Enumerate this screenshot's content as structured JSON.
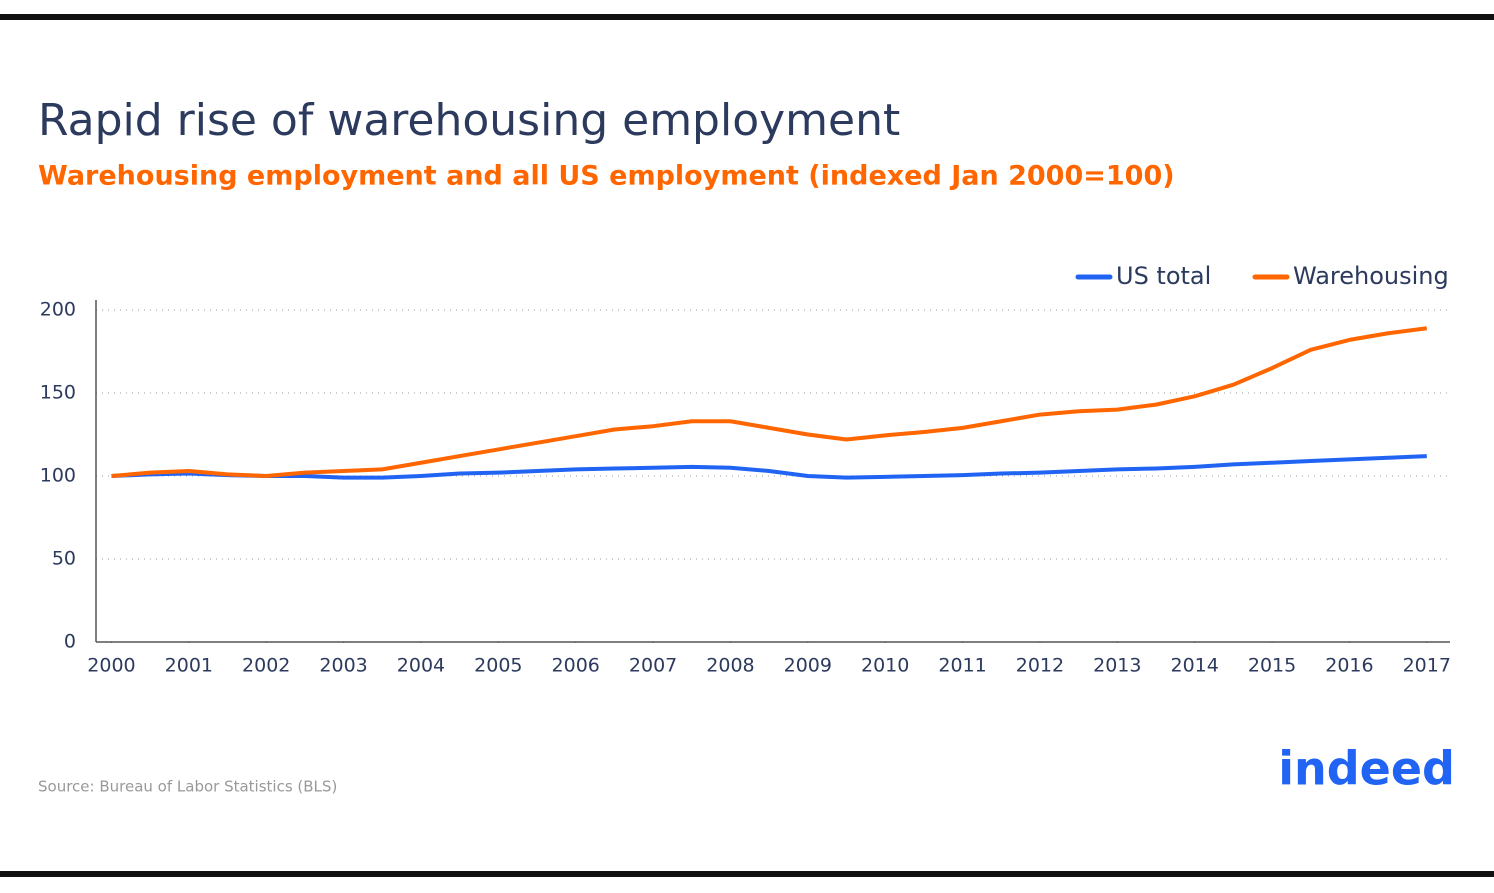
{
  "chart_data": {
    "type": "line",
    "title": "Rapid rise of warehousing employment",
    "subtitle": "Warehousing employment and all US employment (indexed Jan 2000=100)",
    "source": "Source: Bureau of Labor Statistics (BLS)",
    "logo": "indeed",
    "x": [
      2000,
      2000.5,
      2001,
      2001.5,
      2002,
      2002.5,
      2003,
      2003.5,
      2004,
      2004.5,
      2005,
      2005.5,
      2006,
      2006.5,
      2007,
      2007.5,
      2008,
      2008.5,
      2009,
      2009.5,
      2010,
      2010.5,
      2011,
      2011.5,
      2012,
      2012.5,
      2013,
      2013.5,
      2014,
      2014.5,
      2015,
      2015.5,
      2016,
      2016.5,
      2017
    ],
    "series": [
      {
        "name": "US total",
        "color": "#2164f3",
        "values": [
          100,
          101,
          101.5,
          100.5,
          100,
          100,
          99,
          99,
          100,
          101.5,
          102,
          103,
          104,
          104.5,
          105,
          105.5,
          105,
          103,
          100,
          99,
          99.5,
          100,
          100.5,
          101.5,
          102,
          103,
          104,
          104.5,
          105.5,
          107,
          108,
          109,
          110,
          111,
          112
        ]
      },
      {
        "name": "Warehousing",
        "color": "#ff6600",
        "values": [
          100,
          102,
          103,
          101,
          100,
          102,
          103,
          104,
          108,
          112,
          116,
          120,
          124,
          128,
          130,
          133,
          133,
          129,
          125,
          122,
          124.5,
          126.5,
          129,
          133,
          137,
          139,
          140,
          143,
          148,
          155,
          165,
          176,
          182,
          186,
          189
        ]
      }
    ],
    "xlim": [
      1999.8,
      2017.3
    ],
    "xticks": [
      2000,
      2001,
      2002,
      2003,
      2004,
      2005,
      2006,
      2007,
      2008,
      2009,
      2010,
      2011,
      2012,
      2013,
      2014,
      2015,
      2016,
      2017
    ],
    "ylim": [
      0,
      200
    ],
    "yticks": [
      0,
      50,
      100,
      150,
      200
    ],
    "grid": true,
    "legend": "top-right"
  }
}
